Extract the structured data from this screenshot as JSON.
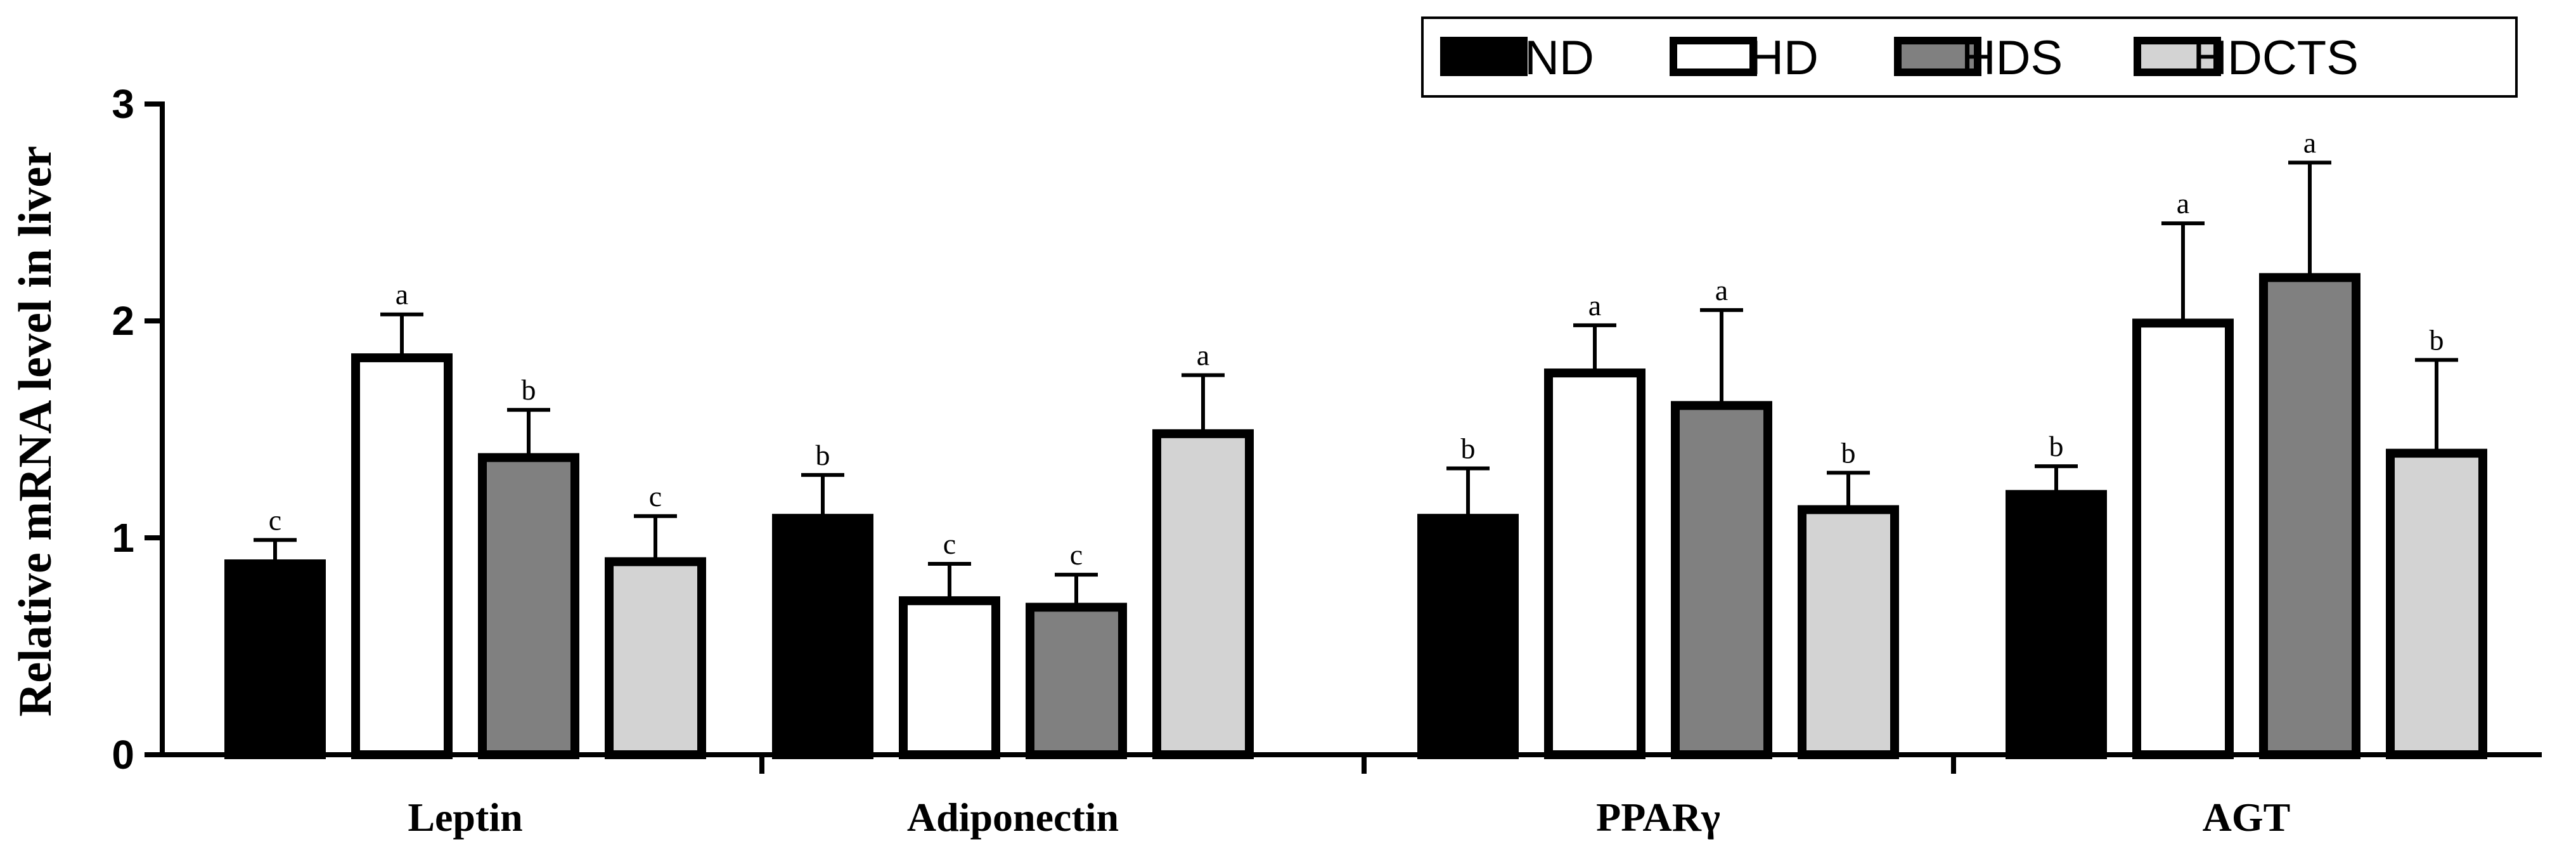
{
  "chart_data": {
    "type": "bar",
    "title": "",
    "xlabel": "",
    "ylabel": "Relative mRNA level in liver",
    "ylim": [
      0,
      3
    ],
    "yticks": [
      "0",
      "1",
      "2",
      "3"
    ],
    "categories": [
      "Leptin",
      "Adiponectin",
      "PPARγ",
      "AGT"
    ],
    "legend_position": "top-right",
    "series": [
      {
        "name": "ND",
        "color": "#000000",
        "values": [
          0.88,
          1.09,
          1.09,
          1.2
        ],
        "errors": [
          0.11,
          0.2,
          0.23,
          0.13
        ],
        "labels": [
          "c",
          "b",
          "b",
          "b"
        ]
      },
      {
        "name": "HD",
        "color": "#ffffff",
        "values": [
          1.83,
          0.71,
          1.76,
          1.99
        ],
        "errors": [
          0.2,
          0.17,
          0.22,
          0.46
        ],
        "labels": [
          "a",
          "c",
          "a",
          "a"
        ]
      },
      {
        "name": "HDS",
        "color": "#808080",
        "values": [
          1.37,
          0.68,
          1.61,
          2.2
        ],
        "errors": [
          0.22,
          0.15,
          0.44,
          0.53
        ],
        "labels": [
          "b",
          "c",
          "a",
          "a"
        ]
      },
      {
        "name": "HDCTS",
        "color": "#d3d3d3",
        "values": [
          0.89,
          1.48,
          1.13,
          1.39
        ],
        "errors": [
          0.21,
          0.27,
          0.17,
          0.43
        ],
        "labels": [
          "c",
          "a",
          "b",
          "b"
        ]
      }
    ]
  }
}
